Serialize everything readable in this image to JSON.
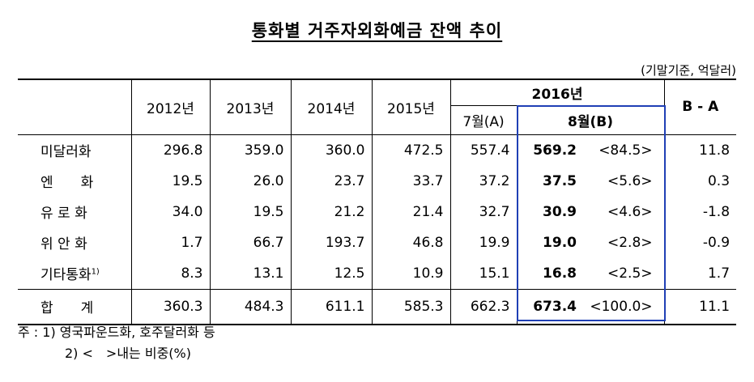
{
  "title": "통화별 거주자외화예금 잔액 추이",
  "unit": "(기말기준, 억달러)",
  "header": {
    "years": [
      "2012년",
      "2013년",
      "2014년",
      "2015년"
    ],
    "year2016": "2016년",
    "jul": "7월(A)",
    "aug": "8월(B)",
    "diff": "B - A"
  },
  "rows": [
    {
      "label": "미달러화",
      "sup": "",
      "v2012": "296.8",
      "v2013": "359.0",
      "v2014": "360.0",
      "v2015": "472.5",
      "jul": "557.4",
      "aug": "569.2",
      "share": "<84.5>",
      "diff": "11.8"
    },
    {
      "label": "엔　　화",
      "sup": "",
      "v2012": "19.5",
      "v2013": "26.0",
      "v2014": "23.7",
      "v2015": "33.7",
      "jul": "37.2",
      "aug": "37.5",
      "share": "<5.6>",
      "diff": "0.3"
    },
    {
      "label": "유 로 화",
      "sup": "",
      "v2012": "34.0",
      "v2013": "19.5",
      "v2014": "21.2",
      "v2015": "21.4",
      "jul": "32.7",
      "aug": "30.9",
      "share": "<4.6>",
      "diff": "-1.8"
    },
    {
      "label": "위 안 화",
      "sup": "",
      "v2012": "1.7",
      "v2013": "66.7",
      "v2014": "193.7",
      "v2015": "46.8",
      "jul": "19.9",
      "aug": "19.0",
      "share": "<2.8>",
      "diff": "-0.9"
    },
    {
      "label": "기타통화",
      "sup": "1)",
      "v2012": "8.3",
      "v2013": "13.1",
      "v2014": "12.5",
      "v2015": "10.9",
      "jul": "15.1",
      "aug": "16.8",
      "share": "<2.5>",
      "diff": "1.7"
    }
  ],
  "total": {
    "label": "합　　계",
    "v2012": "360.3",
    "v2013": "484.3",
    "v2014": "611.1",
    "v2015": "585.3",
    "jul": "662.3",
    "aug": "673.4",
    "share": "<100.0>",
    "diff": "11.1"
  },
  "notes": {
    "line1": "주 : 1) 영국파운드화, 호주달러화 등",
    "line2": "2) <　>내는 비중(%)"
  },
  "colors": {
    "highlight_box": "#1f3fb5"
  }
}
